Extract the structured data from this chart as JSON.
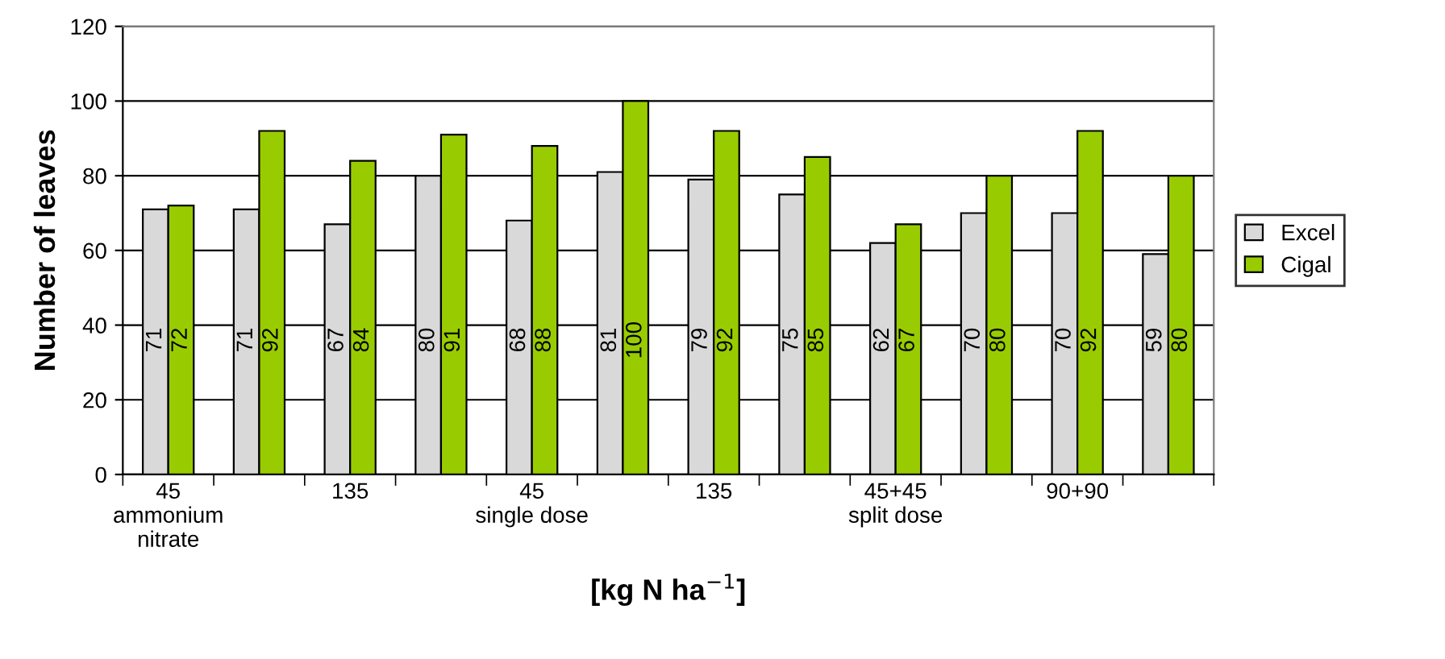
{
  "chart_data": {
    "type": "bar",
    "categories": [
      "45\nammonium\nnitrate",
      null,
      "135",
      null,
      "45\nsingle dose",
      null,
      "135",
      null,
      "45+45\nsplit dose",
      null,
      "90+90",
      null
    ],
    "series": [
      {
        "name": "Excel",
        "color": "#d9d9d9",
        "values": [
          71,
          71,
          67,
          80,
          68,
          81,
          79,
          75,
          62,
          70,
          70,
          59
        ]
      },
      {
        "name": "Cigal",
        "color": "#99cc00",
        "values": [
          72,
          92,
          84,
          91,
          88,
          100,
          92,
          85,
          67,
          80,
          92,
          80
        ]
      }
    ],
    "ylabel": "Number of leaves",
    "xlabel": "[kg N ha$^{−1}$]",
    "ylim": [
      0,
      120
    ],
    "yticks": [
      0,
      20,
      40,
      60,
      80,
      100,
      120
    ],
    "grid": "y",
    "legend": "right",
    "data_labels": true
  }
}
